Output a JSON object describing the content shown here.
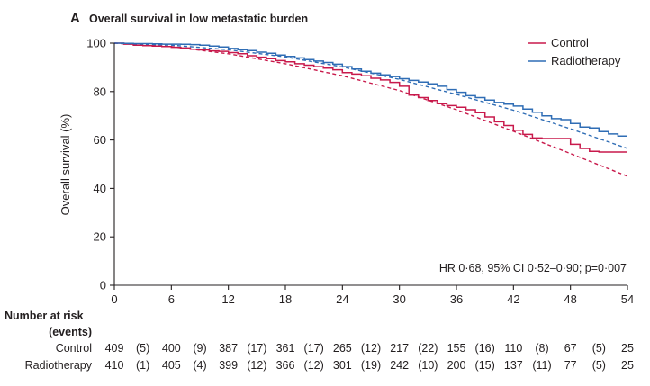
{
  "colors": {
    "control": "#c8194b",
    "radiotherapy": "#2f6db5",
    "axis": "#231f20"
  },
  "chart_data": {
    "type": "line",
    "panel_letter": "A",
    "title": "Overall survival in low metastatic burden",
    "xlabel": "",
    "ylabel": "Overall survival (%)",
    "xlim": [
      0,
      54
    ],
    "ylim": [
      0,
      100
    ],
    "x_ticks": [
      0,
      6,
      12,
      18,
      24,
      30,
      36,
      42,
      48,
      54
    ],
    "y_ticks": [
      0,
      20,
      40,
      60,
      80,
      100
    ],
    "grid": false,
    "legend_position": "top-right",
    "annotation": "HR 0·68, 95% CI 0·52–0·90; p=0·007",
    "series": [
      {
        "name": "Control",
        "kind": "km",
        "color": "#c8194b",
        "points": [
          [
            0,
            100
          ],
          [
            1,
            99.6
          ],
          [
            2,
            99.2
          ],
          [
            3,
            99
          ],
          [
            4,
            98.8
          ],
          [
            5,
            98.6
          ],
          [
            6,
            98.3
          ],
          [
            7,
            98
          ],
          [
            8,
            97.5
          ],
          [
            9,
            97.2
          ],
          [
            10,
            96.8
          ],
          [
            11,
            96.6
          ],
          [
            12,
            96.1
          ],
          [
            13,
            95.6
          ],
          [
            14,
            94.8
          ],
          [
            15,
            94.2
          ],
          [
            16,
            93.6
          ],
          [
            17,
            92.8
          ],
          [
            18,
            92.3
          ],
          [
            19,
            91.5
          ],
          [
            20,
            90.9
          ],
          [
            21,
            90.3
          ],
          [
            22,
            89.7
          ],
          [
            23,
            89
          ],
          [
            24,
            87.8
          ],
          [
            25,
            87.2
          ],
          [
            26,
            86.5
          ],
          [
            27,
            85.5
          ],
          [
            28,
            84.8
          ],
          [
            29,
            83.8
          ],
          [
            30,
            82.2
          ],
          [
            31,
            78.5
          ],
          [
            32,
            77.5
          ],
          [
            33,
            76.3
          ],
          [
            34,
            75
          ],
          [
            35,
            74.2
          ],
          [
            36,
            73.5
          ],
          [
            37,
            72.5
          ],
          [
            38,
            71.3
          ],
          [
            39,
            69.5
          ],
          [
            40,
            67.5
          ],
          [
            41,
            66
          ],
          [
            42,
            64
          ],
          [
            43,
            62.3
          ],
          [
            44,
            60.8
          ],
          [
            45,
            60.6
          ],
          [
            46,
            60.6
          ],
          [
            47,
            60.6
          ],
          [
            48,
            58.2
          ],
          [
            49,
            56.5
          ],
          [
            50,
            55.3
          ],
          [
            51,
            55
          ],
          [
            52,
            55
          ],
          [
            53,
            55
          ],
          [
            54,
            55
          ]
        ]
      },
      {
        "name": "Radiotherapy",
        "kind": "km",
        "color": "#2f6db5",
        "points": [
          [
            0,
            100
          ],
          [
            1,
            99.9
          ],
          [
            2,
            99.8
          ],
          [
            3,
            99.8
          ],
          [
            4,
            99.7
          ],
          [
            5,
            99.6
          ],
          [
            6,
            99.6
          ],
          [
            7,
            99.5
          ],
          [
            8,
            99.4
          ],
          [
            9,
            99.2
          ],
          [
            10,
            98.8
          ],
          [
            11,
            98.4
          ],
          [
            12,
            97.8
          ],
          [
            13,
            97.3
          ],
          [
            14,
            96.9
          ],
          [
            15,
            96.3
          ],
          [
            16,
            95.8
          ],
          [
            17,
            95.1
          ],
          [
            18,
            94.5
          ],
          [
            19,
            93.9
          ],
          [
            20,
            93.2
          ],
          [
            21,
            92.6
          ],
          [
            22,
            92
          ],
          [
            23,
            91.3
          ],
          [
            24,
            90.3
          ],
          [
            25,
            89.3
          ],
          [
            26,
            88.4
          ],
          [
            27,
            87.6
          ],
          [
            28,
            86.9
          ],
          [
            29,
            86.2
          ],
          [
            30,
            85.3
          ],
          [
            31,
            84.6
          ],
          [
            32,
            83.9
          ],
          [
            33,
            83.2
          ],
          [
            34,
            82.2
          ],
          [
            35,
            80.8
          ],
          [
            36,
            79.7
          ],
          [
            37,
            78.3
          ],
          [
            38,
            77.5
          ],
          [
            39,
            76.5
          ],
          [
            40,
            75.5
          ],
          [
            41,
            74.8
          ],
          [
            42,
            74
          ],
          [
            43,
            72.8
          ],
          [
            44,
            71.5
          ],
          [
            45,
            70
          ],
          [
            46,
            68.8
          ],
          [
            47,
            68.4
          ],
          [
            48,
            66.8
          ],
          [
            49,
            65.3
          ],
          [
            50,
            65
          ],
          [
            51,
            63.5
          ],
          [
            52,
            62.5
          ],
          [
            53,
            61.6
          ],
          [
            54,
            61.6
          ]
        ]
      },
      {
        "name": "Control",
        "kind": "fitted",
        "color": "#c8194b",
        "dashed": true,
        "points": [
          [
            0,
            100
          ],
          [
            6,
            98.6
          ],
          [
            12,
            95.6
          ],
          [
            18,
            91.5
          ],
          [
            24,
            86.5
          ],
          [
            30,
            80.4
          ],
          [
            36,
            72.5
          ],
          [
            42,
            63.6
          ],
          [
            48,
            54.4
          ],
          [
            54,
            45
          ]
        ]
      },
      {
        "name": "Radiotherapy",
        "kind": "fitted",
        "color": "#2f6db5",
        "dashed": true,
        "points": [
          [
            0,
            100
          ],
          [
            6,
            99.2
          ],
          [
            12,
            97.3
          ],
          [
            18,
            94.3
          ],
          [
            24,
            90.2
          ],
          [
            30,
            85
          ],
          [
            36,
            78.8
          ],
          [
            42,
            72.3
          ],
          [
            48,
            64.6
          ],
          [
            54,
            56.5
          ]
        ]
      }
    ],
    "risk_table": {
      "header": "Number at risk (events)",
      "header_lines": [
        "Number at risk",
        "(events)"
      ],
      "times": [
        0,
        6,
        12,
        18,
        24,
        30,
        36,
        42,
        48,
        54
      ],
      "rows": [
        {
          "label": "Control",
          "at_risk": [
            "409",
            "400",
            "387",
            "361",
            "265",
            "217",
            "155",
            "110",
            "67",
            "25"
          ],
          "events": [
            "(5)",
            "(9)",
            "(17)",
            "(17)",
            "(12)",
            "(22)",
            "(16)",
            "(8)",
            "(5)"
          ]
        },
        {
          "label": "Radiotherapy",
          "at_risk": [
            "410",
            "405",
            "399",
            "366",
            "301",
            "242",
            "200",
            "137",
            "77",
            "25"
          ],
          "events": [
            "(1)",
            "(4)",
            "(12)",
            "(12)",
            "(19)",
            "(10)",
            "(15)",
            "(11)",
            "(5)"
          ]
        }
      ]
    }
  }
}
